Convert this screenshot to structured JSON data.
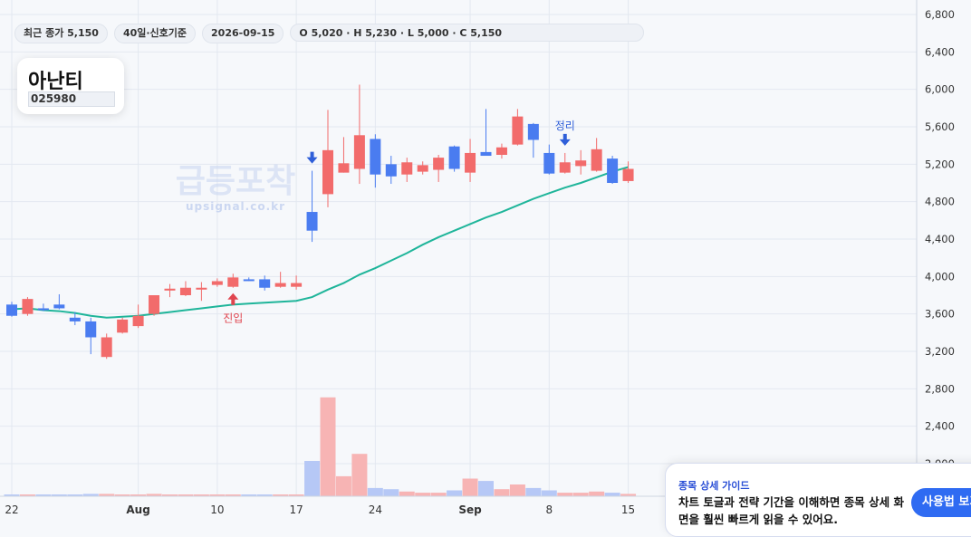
{
  "header": {
    "close_badge": "최근 종가 5,150",
    "period_badge": "40일·신호기준",
    "date_badge": "2026-09-15",
    "ohlc_badge": "O 5,020 · H 5,230 · L 5,000 · C 5,150"
  },
  "symbol": {
    "name": "아난티",
    "code": "025980"
  },
  "watermark": {
    "title": "급등포착",
    "url": "upsignal.co.kr"
  },
  "guide": {
    "title": "종목 상세 가이드",
    "body": "차트 토글과 전략 기간을 이해하면 종목 상세 화면을 훨씬 빠르게 읽을 수 있어요.",
    "button": "사용법 보기"
  },
  "colors": {
    "up": "#f26b6b",
    "down": "#4a7cf0",
    "ma": "#1fb59a",
    "up_vol": "#f7b4b4",
    "down_vol": "#b6c8f6"
  },
  "chart_data": {
    "type": "candlestick",
    "y_ticks": [
      "2,000",
      "2,400",
      "2,800",
      "3,200",
      "3,600",
      "4,000",
      "4,400",
      "4,800",
      "5,200",
      "5,600",
      "6,000",
      "6,400",
      "6,800"
    ],
    "x_ticks": [
      {
        "label": "22",
        "i": 0
      },
      {
        "label": "Aug",
        "i": 8
      },
      {
        "label": "10",
        "i": 13
      },
      {
        "label": "17",
        "i": 18
      },
      {
        "label": "24",
        "i": 23
      },
      {
        "label": "Sep",
        "i": 29
      },
      {
        "label": "8",
        "i": 34
      },
      {
        "label": "15",
        "i": 39
      }
    ],
    "ylim": [
      2000,
      6800
    ],
    "candles": [
      {
        "o": 3700,
        "h": 3730,
        "l": 3570,
        "c": 3580
      },
      {
        "o": 3600,
        "h": 3780,
        "l": 3580,
        "c": 3760
      },
      {
        "o": 3660,
        "h": 3710,
        "l": 3630,
        "c": 3640
      },
      {
        "o": 3700,
        "h": 3810,
        "l": 3650,
        "c": 3660
      },
      {
        "o": 3560,
        "h": 3620,
        "l": 3480,
        "c": 3520
      },
      {
        "o": 3520,
        "h": 3560,
        "l": 3170,
        "c": 3350
      },
      {
        "o": 3140,
        "h": 3390,
        "l": 3120,
        "c": 3350
      },
      {
        "o": 3400,
        "h": 3560,
        "l": 3390,
        "c": 3540
      },
      {
        "o": 3470,
        "h": 3700,
        "l": 3450,
        "c": 3580
      },
      {
        "o": 3600,
        "h": 3800,
        "l": 3580,
        "c": 3800
      },
      {
        "o": 3850,
        "h": 3920,
        "l": 3780,
        "c": 3870
      },
      {
        "o": 3800,
        "h": 3950,
        "l": 3790,
        "c": 3880
      },
      {
        "o": 3860,
        "h": 3940,
        "l": 3740,
        "c": 3880
      },
      {
        "o": 3910,
        "h": 3980,
        "l": 3890,
        "c": 3950
      },
      {
        "o": 3890,
        "h": 4030,
        "l": 3880,
        "c": 3990
      },
      {
        "o": 3970,
        "h": 3990,
        "l": 3950,
        "c": 3960
      },
      {
        "o": 3970,
        "h": 4010,
        "l": 3850,
        "c": 3880
      },
      {
        "o": 3890,
        "h": 4050,
        "l": 3880,
        "c": 3930
      },
      {
        "o": 3890,
        "h": 4010,
        "l": 3860,
        "c": 3930
      },
      {
        "o": 4690,
        "h": 5130,
        "l": 4370,
        "c": 4490
      },
      {
        "o": 4880,
        "h": 5780,
        "l": 4740,
        "c": 5350
      },
      {
        "o": 5110,
        "h": 5490,
        "l": 5110,
        "c": 5210
      },
      {
        "o": 5150,
        "h": 6050,
        "l": 4990,
        "c": 5510
      },
      {
        "o": 5470,
        "h": 5520,
        "l": 4950,
        "c": 5090
      },
      {
        "o": 5200,
        "h": 5290,
        "l": 4990,
        "c": 5070
      },
      {
        "o": 5090,
        "h": 5270,
        "l": 5010,
        "c": 5220
      },
      {
        "o": 5120,
        "h": 5230,
        "l": 5090,
        "c": 5190
      },
      {
        "o": 5140,
        "h": 5300,
        "l": 5010,
        "c": 5270
      },
      {
        "o": 5390,
        "h": 5400,
        "l": 5120,
        "c": 5150
      },
      {
        "o": 5110,
        "h": 5470,
        "l": 5010,
        "c": 5320
      },
      {
        "o": 5330,
        "h": 5790,
        "l": 5300,
        "c": 5290
      },
      {
        "o": 5300,
        "h": 5420,
        "l": 5260,
        "c": 5380
      },
      {
        "o": 5410,
        "h": 5790,
        "l": 5400,
        "c": 5710
      },
      {
        "o": 5630,
        "h": 5640,
        "l": 5270,
        "c": 5460
      },
      {
        "o": 5320,
        "h": 5410,
        "l": 5090,
        "c": 5100
      },
      {
        "o": 5110,
        "h": 5320,
        "l": 5100,
        "c": 5220
      },
      {
        "o": 5180,
        "h": 5350,
        "l": 5090,
        "c": 5240
      },
      {
        "o": 5130,
        "h": 5480,
        "l": 5120,
        "c": 5360
      },
      {
        "o": 5260,
        "h": 5290,
        "l": 4990,
        "c": 5000
      },
      {
        "o": 5020,
        "h": 5230,
        "l": 5000,
        "c": 5150
      }
    ],
    "ma": [
      3650,
      3660,
      3640,
      3630,
      3610,
      3580,
      3560,
      3570,
      3580,
      3600,
      3620,
      3640,
      3660,
      3680,
      3700,
      3710,
      3720,
      3730,
      3740,
      3780,
      3860,
      3930,
      4020,
      4090,
      4170,
      4250,
      4340,
      4420,
      4490,
      4560,
      4630,
      4690,
      4760,
      4830,
      4890,
      4950,
      5000,
      5060,
      5120,
      5170
    ],
    "volume": [
      1,
      1,
      1,
      1,
      1,
      2,
      2,
      1,
      1,
      2,
      1,
      1,
      1,
      1,
      1,
      1,
      1,
      1,
      1,
      30,
      84,
      17,
      36,
      7,
      6,
      4,
      3,
      3,
      5,
      15,
      13,
      6,
      10,
      7,
      5,
      3,
      3,
      4,
      3,
      2
    ],
    "markers": [
      {
        "i": 14,
        "type": "entry",
        "label": "진입"
      },
      {
        "i": 19,
        "type": "down",
        "label": ""
      },
      {
        "i": 35,
        "type": "exit",
        "label": "정리"
      }
    ]
  }
}
